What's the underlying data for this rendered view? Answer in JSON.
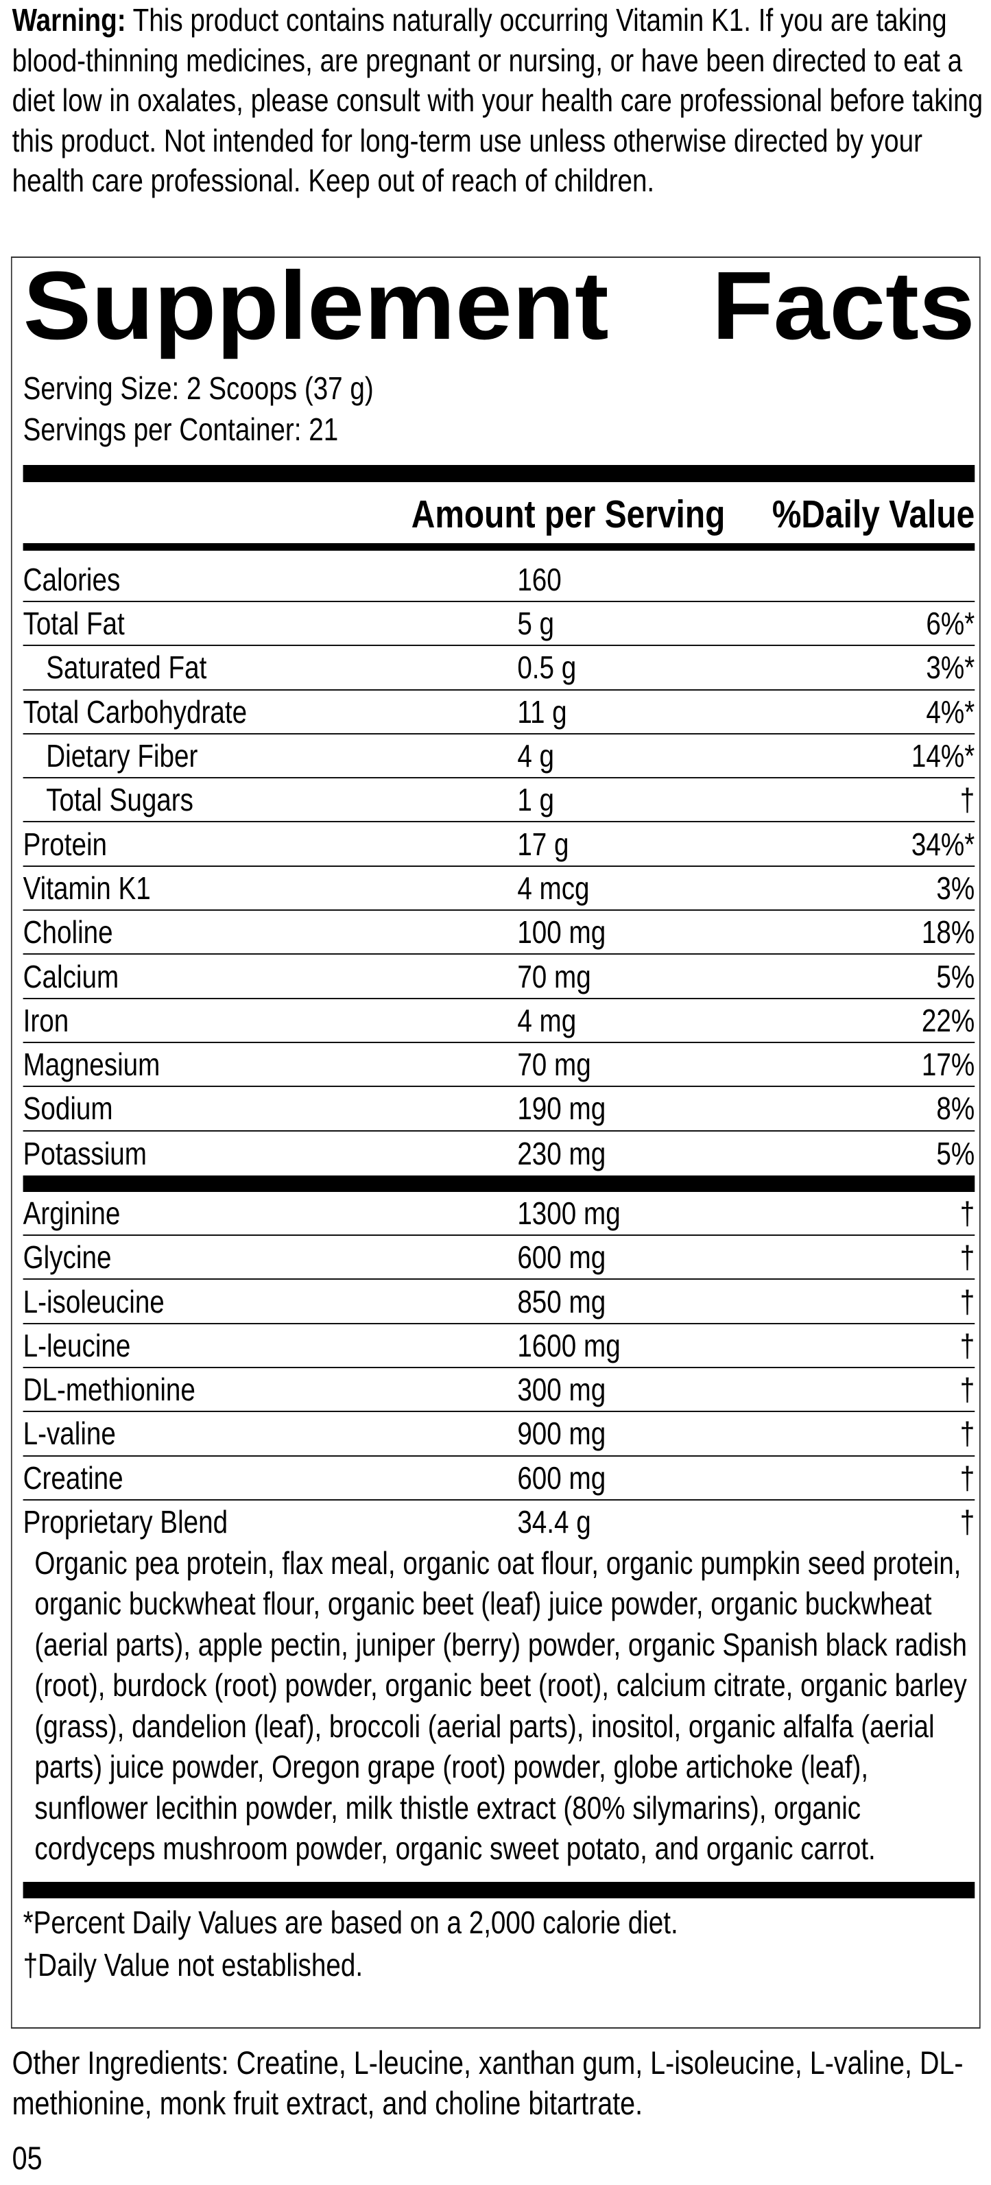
{
  "warning": {
    "label": "Warning:",
    "text": "This product contains naturally occurring Vitamin K1. If you are taking blood-thinning medicines, are pregnant or nursing, or have been directed to eat a diet low in oxalates, please consult with your health care professional before taking this product. Not intended for long-term use unless otherwise directed by your health care professional. Keep out of reach of children."
  },
  "facts": {
    "title_word1": "Supplement",
    "title_word2": "Facts",
    "serving_size": "Serving Size: 2 Scoops (37 g)",
    "servings_per_container": "Servings per Container: 21",
    "header_amount": "Amount per Serving",
    "header_dv": "%Daily Value",
    "nutrients": [
      {
        "name": "Calories",
        "amount": "160",
        "dv": ""
      },
      {
        "name": "Total Fat",
        "amount": "5 g",
        "dv": "6%*"
      },
      {
        "name": "Saturated Fat",
        "amount": "0.5 g",
        "dv": "3%*"
      },
      {
        "name": "Total Carbohydrate",
        "amount": "11 g",
        "dv": "4%*"
      },
      {
        "name": "Dietary Fiber",
        "amount": "4 g",
        "dv": "14%*"
      },
      {
        "name": "Total Sugars",
        "amount": "1 g",
        "dv": "†"
      },
      {
        "name": "Protein",
        "amount": "17 g",
        "dv": "34%*"
      },
      {
        "name": "Vitamin K1",
        "amount": "4 mcg",
        "dv": "3%"
      },
      {
        "name": "Choline",
        "amount": "100 mg",
        "dv": "18%"
      },
      {
        "name": "Calcium",
        "amount": "70 mg",
        "dv": "5%"
      },
      {
        "name": "Iron",
        "amount": "4 mg",
        "dv": "22%"
      },
      {
        "name": "Magnesium",
        "amount": "70 mg",
        "dv": "17%"
      },
      {
        "name": "Sodium",
        "amount": "190 mg",
        "dv": "8%"
      },
      {
        "name": "Potassium",
        "amount": "230 mg",
        "dv": "5%"
      }
    ],
    "amino_acids": [
      {
        "name": "Arginine",
        "amount": "1300 mg",
        "dv": "†"
      },
      {
        "name": "Glycine",
        "amount": "600 mg",
        "dv": "†"
      },
      {
        "name": "L-isoleucine",
        "amount": "850 mg",
        "dv": "†"
      },
      {
        "name": "L-leucine",
        "amount": "1600 mg",
        "dv": "†"
      },
      {
        "name": "DL-methionine",
        "amount": "300 mg",
        "dv": "†"
      },
      {
        "name": "L-valine",
        "amount": "900 mg",
        "dv": "†"
      },
      {
        "name": "Creatine",
        "amount": "600 mg",
        "dv": "†"
      }
    ],
    "blend": {
      "name": "Proprietary Blend",
      "amount": "34.4 g",
      "dv": "†",
      "ingredients": "Organic pea protein, flax meal, organic oat flour, organic pumpkin seed protein, organic buckwheat flour, organic beet (leaf) juice powder, organic buckwheat (aerial parts), apple pectin, juniper (berry) powder, organic Spanish black radish (root), burdock (root) powder, organic beet (root), calcium citrate, organic barley (grass), dandelion (leaf), broccoli (aerial parts), inositol, organic alfalfa (aerial parts) juice powder, Oregon grape (root) powder, globe artichoke (leaf), sunflower lecithin powder, milk thistle extract (80% silymarins), organic cordyceps mushroom powder, organic sweet potato, and organic carrot."
    },
    "footnote_dv": "*Percent Daily Values are based on a 2,000 calorie diet.",
    "footnote_dagger": "†Daily Value not established."
  },
  "other_ingredients": "Other Ingredients: Creatine, L-leucine, xanthan gum, L-isoleucine, L-valine, DL-methionine, monk fruit extract, and choline bitartrate.",
  "code": "05"
}
